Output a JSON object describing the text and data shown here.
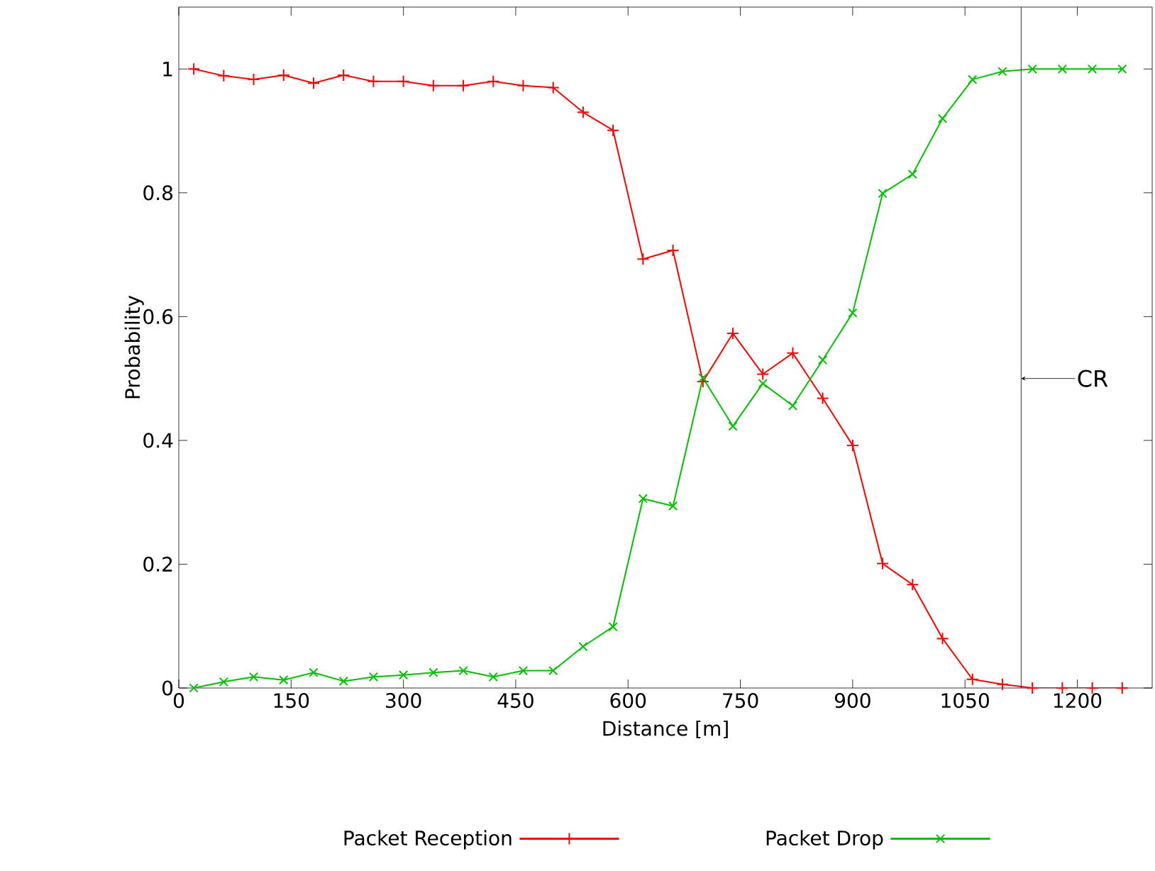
{
  "chart_data": {
    "type": "line",
    "xlabel": "Distance [m]",
    "ylabel": "Probability",
    "x": [
      20,
      60,
      100,
      140,
      180,
      220,
      260,
      300,
      340,
      380,
      420,
      460,
      500,
      540,
      580,
      620,
      660,
      700,
      740,
      780,
      820,
      860,
      900,
      940,
      980,
      1020,
      1060,
      1100,
      1140,
      1180,
      1220,
      1260
    ],
    "series": [
      {
        "name": "Packet Reception",
        "color": "#ff0000",
        "marker": "plus",
        "values": [
          1.0,
          0.989,
          0.983,
          0.99,
          0.977,
          0.99,
          0.98,
          0.98,
          0.973,
          0.973,
          0.98,
          0.973,
          0.97,
          0.93,
          0.901,
          0.693,
          0.707,
          0.495,
          0.573,
          0.507,
          0.541,
          0.468,
          0.392,
          0.201,
          0.167,
          0.08,
          0.014,
          0.006,
          0,
          0,
          0,
          0
        ]
      },
      {
        "name": "Packet Drop",
        "color": "#00c000",
        "marker": "cross",
        "values": [
          0,
          0.01,
          0.018,
          0.013,
          0.025,
          0.011,
          0.018,
          0.021,
          0.025,
          0.028,
          0.018,
          0.028,
          0.028,
          0.067,
          0.099,
          0.306,
          0.294,
          0.501,
          0.423,
          0.492,
          0.456,
          0.53,
          0.606,
          0.799,
          0.83,
          0.92,
          0.983,
          0.996,
          1,
          1,
          1,
          1
        ]
      }
    ],
    "xlim": [
      0,
      1300
    ],
    "xticks": [
      0,
      150,
      300,
      450,
      600,
      750,
      900,
      1050,
      1200
    ],
    "ylim": [
      0,
      1.1
    ],
    "yticks": [
      0,
      0.2,
      0.4,
      0.6,
      0.8,
      1
    ],
    "ref_lines": [
      {
        "axis": "x",
        "value": 1125,
        "label": "CR",
        "color": "#000000"
      }
    ],
    "legend": "bottom",
    "grid": false,
    "line_style": "solid"
  }
}
